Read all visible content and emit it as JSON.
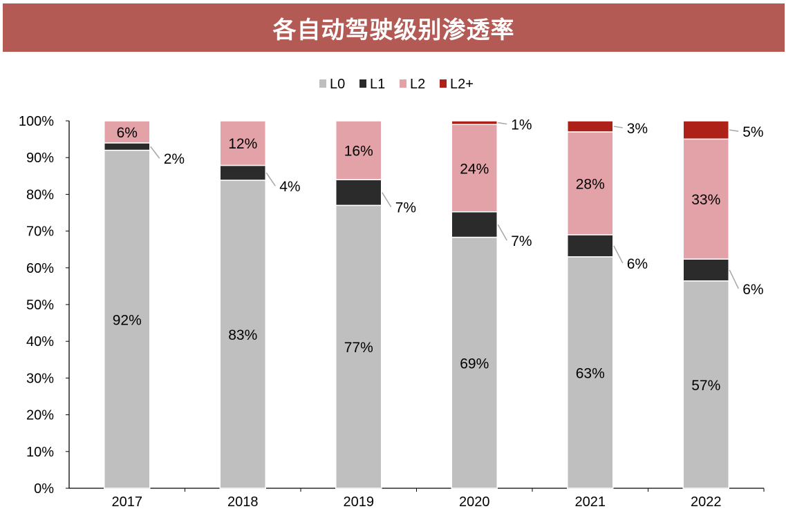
{
  "chart_data": {
    "type": "bar",
    "stacked": true,
    "title": "各自动驾驶级别渗透率",
    "categories": [
      "2017",
      "2018",
      "2019",
      "2020",
      "2021",
      "2022"
    ],
    "series": [
      {
        "name": "L0",
        "color": "#bfbfbf",
        "values": [
          92,
          83,
          77,
          69,
          63,
          57
        ]
      },
      {
        "name": "L1",
        "color": "#2b2b2b",
        "values": [
          2,
          4,
          7,
          7,
          6,
          6
        ]
      },
      {
        "name": "L2",
        "color": "#e3a1a8",
        "values": [
          6,
          12,
          16,
          24,
          28,
          33
        ]
      },
      {
        "name": "L2+",
        "color": "#ae2119",
        "values": [
          0,
          0,
          0,
          1,
          3,
          5
        ]
      }
    ],
    "ylim": [
      0,
      100
    ],
    "yticks": [
      "0%",
      "10%",
      "20%",
      "30%",
      "40%",
      "50%",
      "60%",
      "70%",
      "80%",
      "90%",
      "100%"
    ],
    "grid": false,
    "legend": "top-center",
    "value_format": "percent"
  }
}
